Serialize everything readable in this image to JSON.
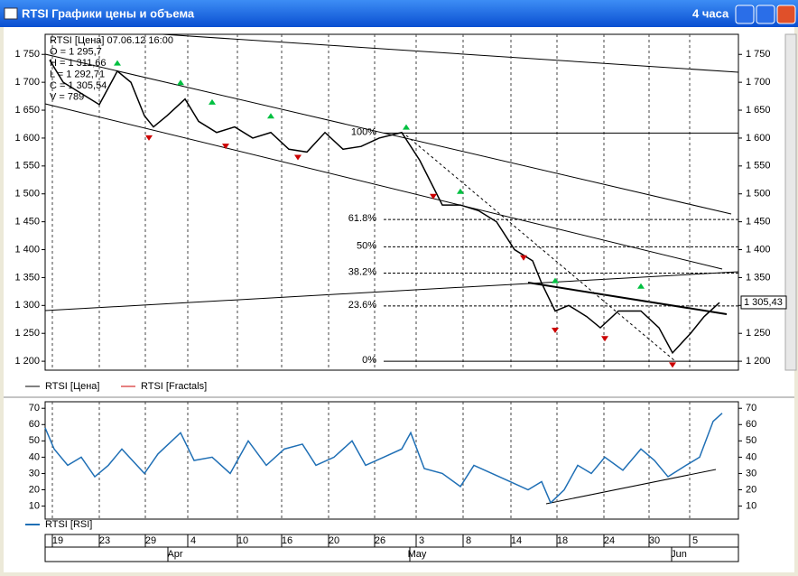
{
  "window": {
    "title": "RTSI Графики цены и объема",
    "timeframe": "4 часа"
  },
  "chart_data": [
    {
      "type": "line",
      "info": [
        "RTSI [Цена] 07.06.12 16:00",
        "O = 1 295,7",
        "H = 1 311,66",
        "L = 1 292,71",
        "C = 1 305,54",
        "V = 789"
      ],
      "last_value": 1305.43,
      "last_label": "1 305,43",
      "series": [
        {
          "name": "RTSI [Цена]",
          "color": "#000000",
          "x": [
            5,
            20,
            40,
            60,
            80,
            95,
            110,
            120,
            135,
            155,
            170,
            190,
            210,
            230,
            250,
            270,
            290,
            310,
            330,
            350,
            370,
            395,
            415,
            440,
            460,
            480,
            500,
            520,
            540,
            550,
            565,
            580,
            600,
            615,
            635,
            660,
            680,
            695,
            715,
            730,
            747
          ],
          "values": [
            1740,
            1700,
            1680,
            1660,
            1720,
            1700,
            1640,
            1620,
            1640,
            1670,
            1630,
            1610,
            1620,
            1600,
            1610,
            1580,
            1575,
            1610,
            1580,
            1585,
            1600,
            1610,
            1560,
            1480,
            1480,
            1470,
            1450,
            1400,
            1380,
            1340,
            1290,
            1300,
            1280,
            1260,
            1290,
            1290,
            1260,
            1215,
            1250,
            1280,
            1305
          ]
        },
        {
          "name": "RTSI [Fractals]",
          "color": "#cc0000",
          "up_color": "#00c040",
          "x": [
            115,
            200,
            280,
            430,
            530,
            565,
            620,
            695
          ],
          "values": [
            1605,
            1590,
            1570,
            1500,
            1390,
            1260,
            1245,
            1198
          ],
          "up_x": [
            80,
            150,
            185,
            250,
            400,
            460,
            565,
            660
          ],
          "up_values": [
            1730,
            1695,
            1660,
            1635,
            1615,
            1500,
            1340,
            1330
          ]
        }
      ],
      "fib_levels": [
        {
          "label": "100%",
          "value": 1609
        },
        {
          "label": "61.8%",
          "value": 1454
        },
        {
          "label": "50%",
          "value": 1405
        },
        {
          "label": "38.2%",
          "value": 1358
        },
        {
          "label": "23.6%",
          "value": 1299
        },
        {
          "label": "0%",
          "value": 1200
        }
      ],
      "xlim": [
        0,
        768
      ],
      "ylim": [
        1184,
        1786
      ],
      "yticks": [
        {
          "value": 1200,
          "label": "1 200"
        },
        {
          "value": 1250,
          "label": "1 250"
        },
        {
          "value": 1300,
          "label": "1 300"
        },
        {
          "value": 1350,
          "label": "1 350"
        },
        {
          "value": 1400,
          "label": "1 400"
        },
        {
          "value": 1450,
          "label": "1 450"
        },
        {
          "value": 1500,
          "label": "1 500"
        },
        {
          "value": 1550,
          "label": "1 550"
        },
        {
          "value": 1600,
          "label": "1 600"
        },
        {
          "value": 1650,
          "label": "1 650"
        },
        {
          "value": 1700,
          "label": "1 700"
        },
        {
          "value": 1750,
          "label": "1 750"
        }
      ]
    },
    {
      "type": "line",
      "series": [
        {
          "name": "RTSI [RSI]",
          "color": "#1f6fb5",
          "x": [
            0,
            10,
            25,
            40,
            55,
            70,
            85,
            110,
            125,
            150,
            165,
            185,
            205,
            225,
            245,
            265,
            285,
            300,
            320,
            340,
            355,
            375,
            395,
            405,
            420,
            440,
            460,
            475,
            495,
            515,
            535,
            550,
            560,
            575,
            590,
            605,
            620,
            640,
            660,
            675,
            690,
            710,
            725,
            740,
            750
          ],
          "values": [
            58,
            45,
            35,
            40,
            28,
            35,
            45,
            30,
            42,
            55,
            38,
            40,
            30,
            50,
            35,
            45,
            48,
            35,
            40,
            50,
            35,
            40,
            45,
            55,
            33,
            30,
            22,
            35,
            30,
            25,
            20,
            25,
            12,
            20,
            35,
            30,
            40,
            32,
            45,
            38,
            28,
            35,
            40,
            62,
            67
          ]
        }
      ],
      "xlim": [
        0,
        768
      ],
      "ylim": [
        2,
        74
      ],
      "yticks": [
        10,
        20,
        30,
        40,
        50,
        60,
        70
      ],
      "xticks": [
        {
          "value": 13,
          "label": "19"
        },
        {
          "value": 65,
          "label": "23"
        },
        {
          "value": 116,
          "label": "29"
        },
        {
          "value": 163,
          "label": "4"
        },
        {
          "value": 218,
          "label": "10"
        },
        {
          "value": 267,
          "label": "16"
        },
        {
          "value": 319,
          "label": "20"
        },
        {
          "value": 370,
          "label": "26"
        },
        {
          "value": 416,
          "label": "3"
        },
        {
          "value": 468,
          "label": "8"
        },
        {
          "value": 521,
          "label": "14"
        },
        {
          "value": 572,
          "label": "18"
        },
        {
          "value": 624,
          "label": "24"
        },
        {
          "value": 674,
          "label": "30"
        },
        {
          "value": 719,
          "label": "5"
        }
      ],
      "month_ticks": [
        {
          "value": 144,
          "label": "Apr"
        },
        {
          "value": 412,
          "label": "May"
        },
        {
          "value": 702,
          "label": "Jun"
        }
      ]
    }
  ]
}
